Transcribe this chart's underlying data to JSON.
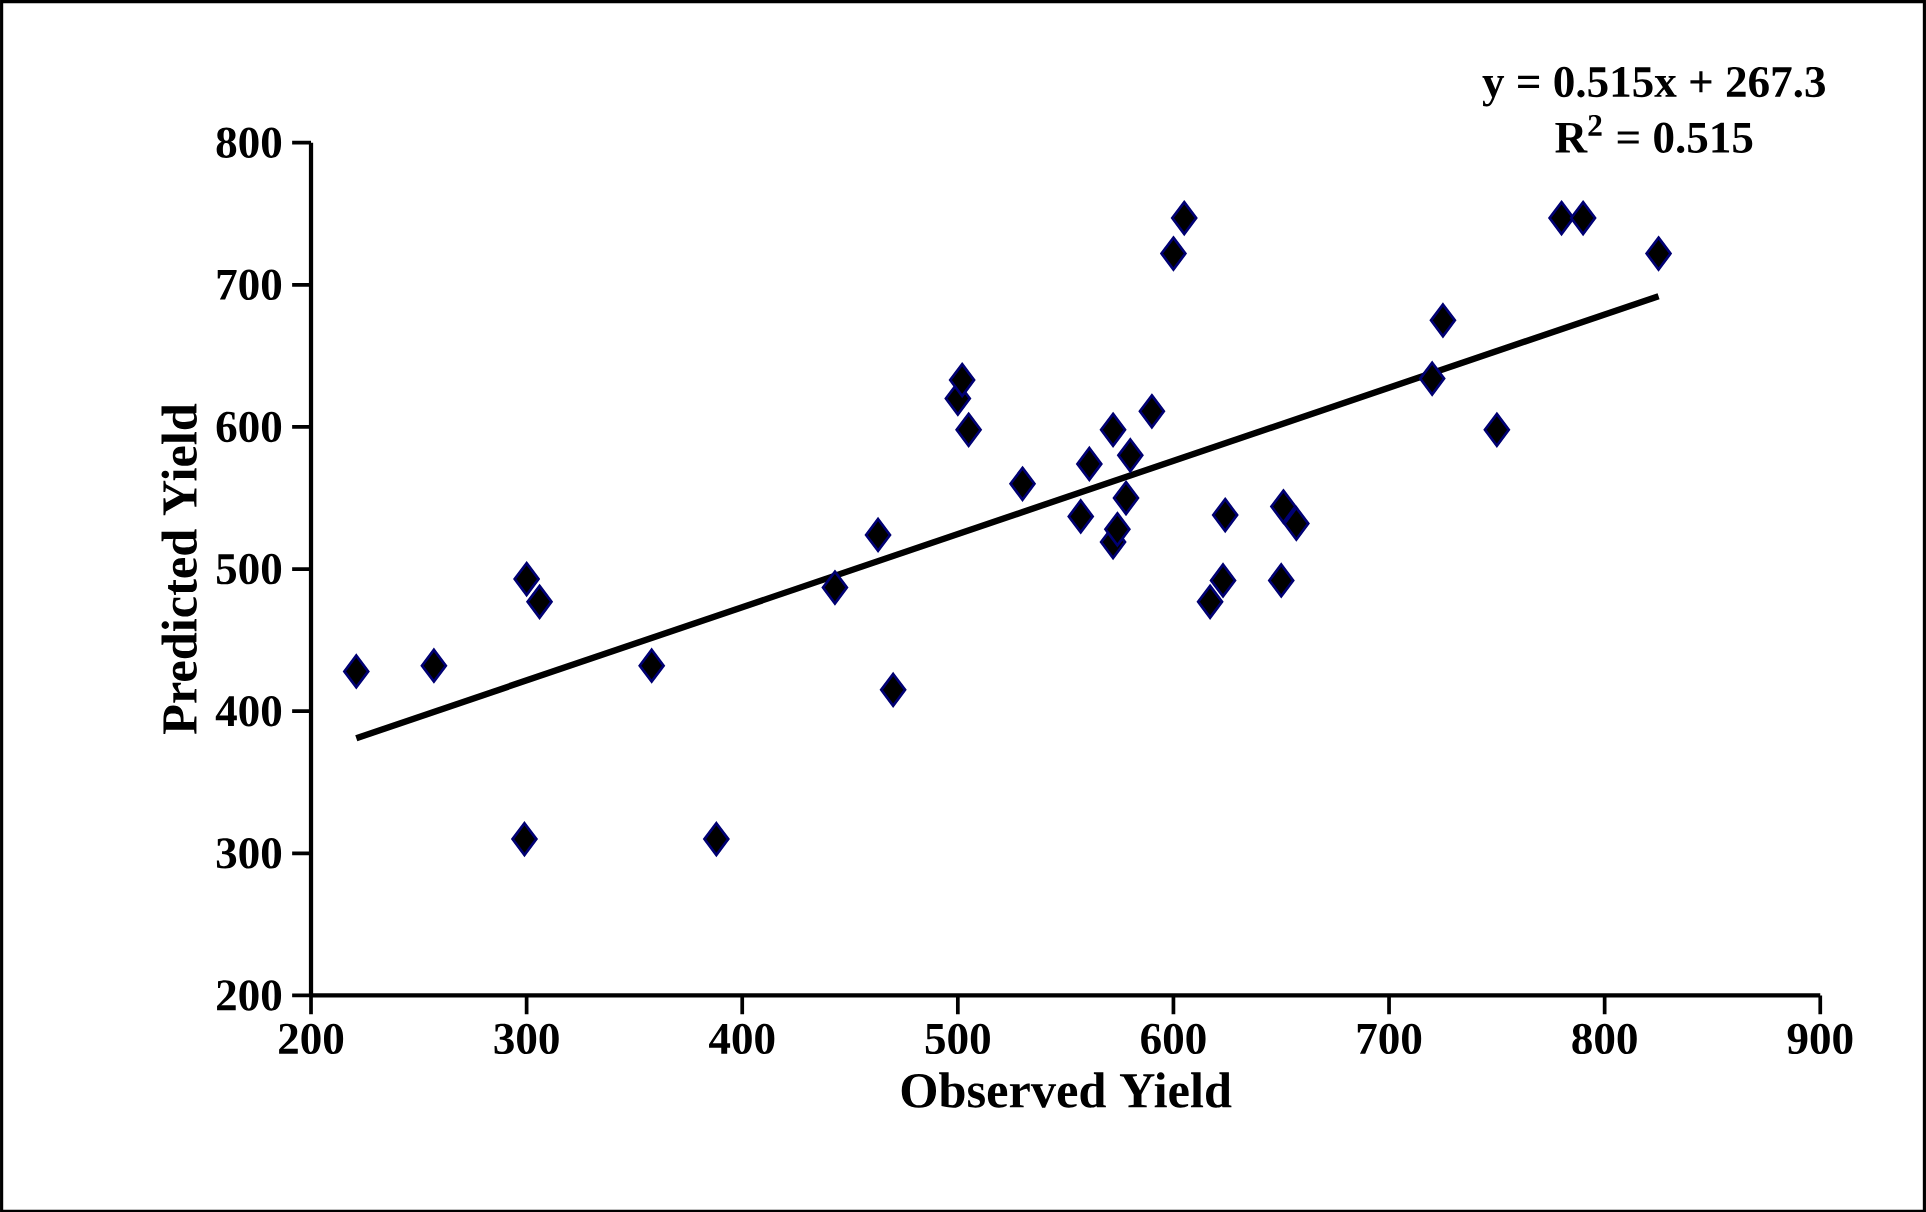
{
  "chart_data": {
    "type": "scatter",
    "xlabel": "Observed Yield",
    "ylabel": "Predicted Yield",
    "annotations": [
      "y = 0.515x + 267.3",
      "R$^{2}$ = 0.515"
    ],
    "xlim": [
      200,
      900
    ],
    "xticks": [
      200,
      300,
      400,
      500,
      600,
      700,
      800,
      900
    ],
    "ylim": [
      200,
      800
    ],
    "yticks": [
      200,
      300,
      400,
      500,
      600,
      700,
      800
    ],
    "grid": false,
    "series": [
      {
        "marker": "diamond",
        "color": "#000000",
        "x": [
          221,
          257,
          299,
          300,
          306,
          358,
          388,
          443,
          463,
          470,
          500,
          502,
          505,
          530,
          557,
          561,
          572,
          574,
          572,
          578,
          580,
          590,
          600,
          605,
          617,
          623,
          624,
          650,
          651,
          657,
          720,
          725,
          750,
          780,
          790,
          825
        ],
        "values": [
          428,
          432,
          310,
          493,
          477,
          432,
          310,
          487,
          524,
          415,
          620,
          633,
          598,
          560,
          537,
          574,
          519,
          528,
          598,
          550,
          580,
          611,
          722,
          747,
          477,
          492,
          538,
          492,
          544,
          532,
          634,
          675,
          598,
          747,
          747,
          722
        ]
      },
      {
        "type": "line",
        "marker": "none",
        "line_style": "solid",
        "color": "#000000",
        "x": [
          221,
          825
        ],
        "values": [
          381,
          692
        ]
      }
    ]
  }
}
